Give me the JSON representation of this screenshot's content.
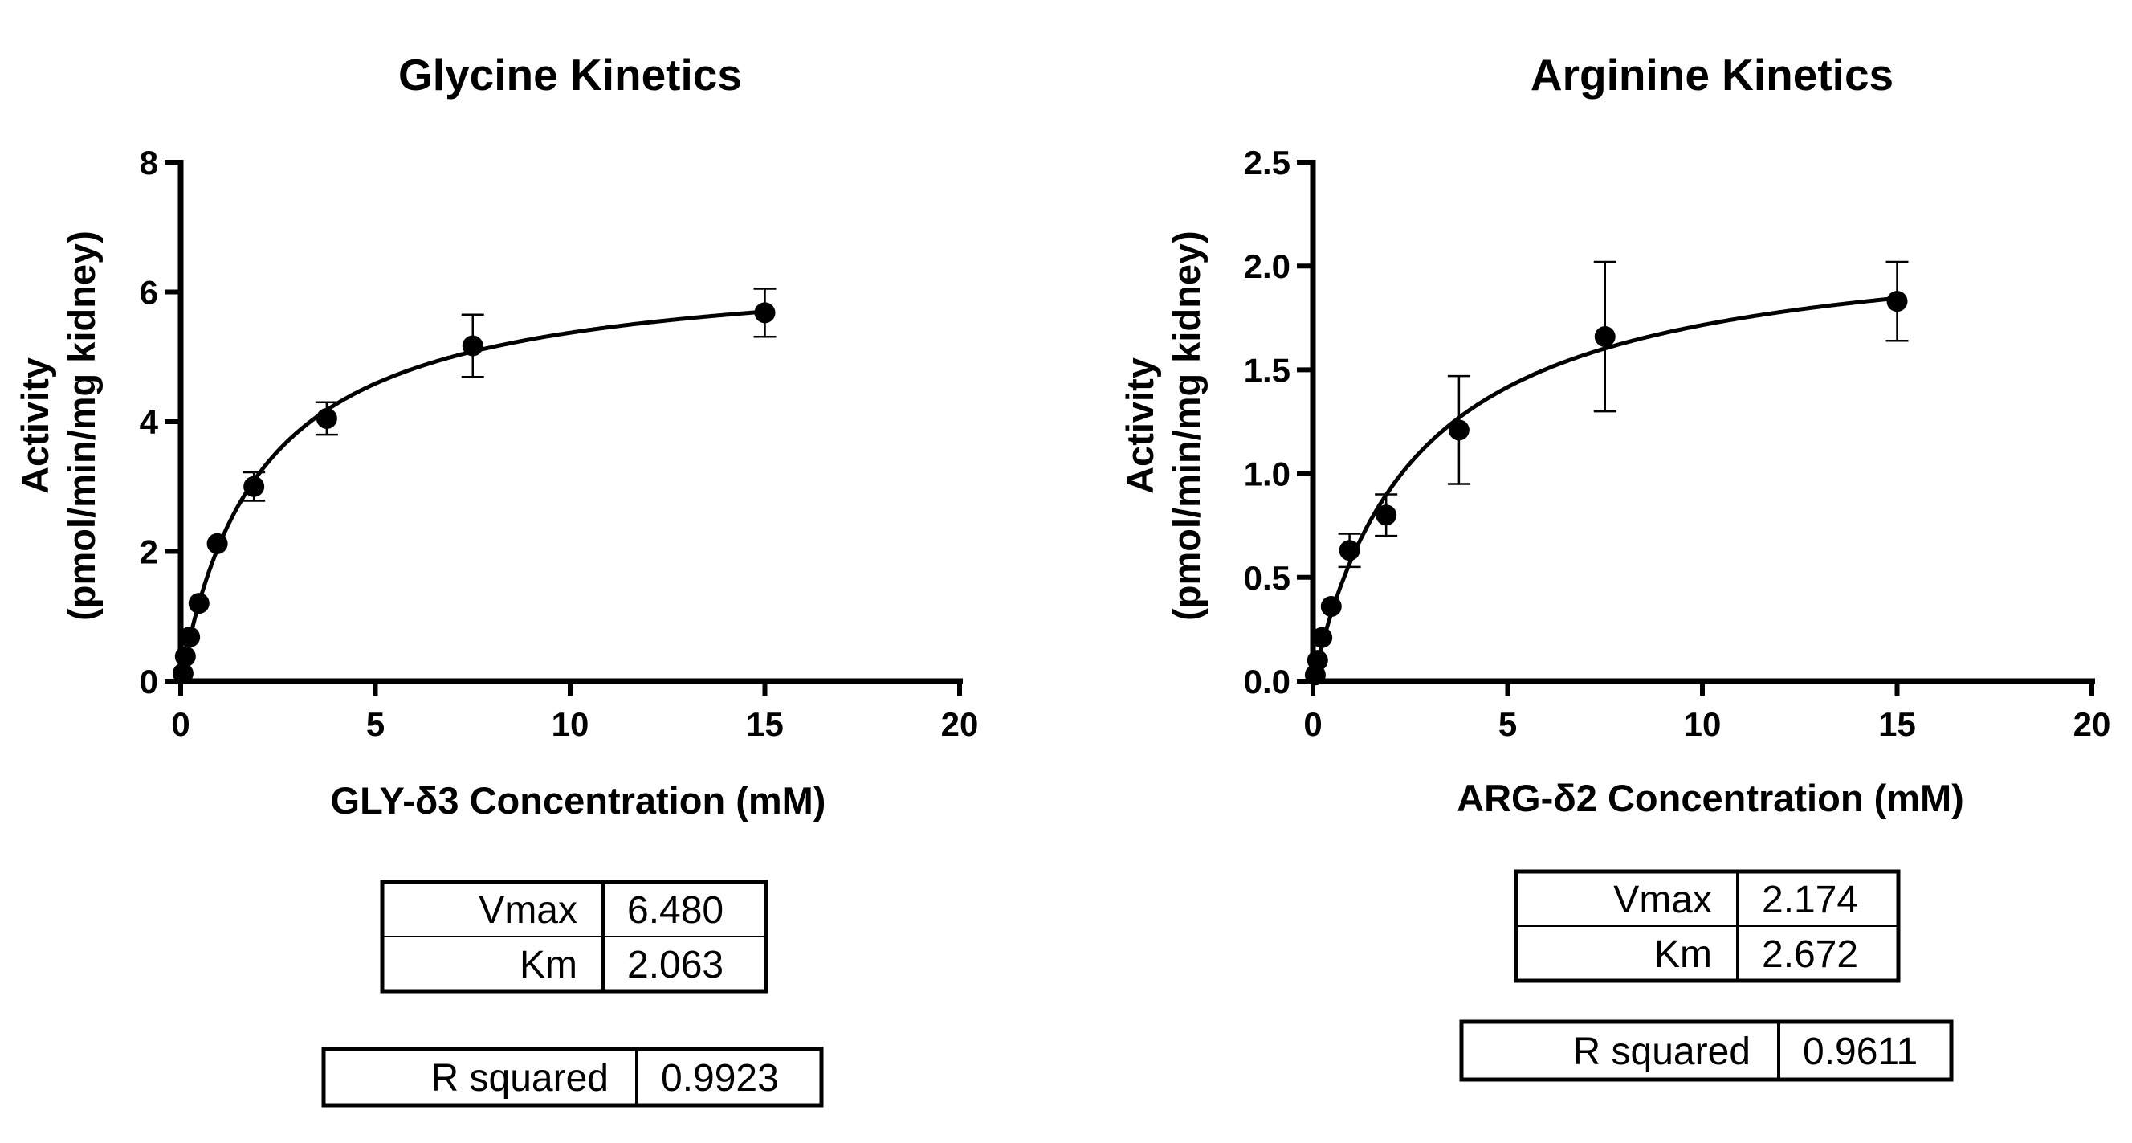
{
  "chart_data": [
    {
      "type": "scatter",
      "title": "Glycine Kinetics",
      "xlabel": "GLY-δ3 Concentration (mM)",
      "ylabel_lines": [
        "Activity",
        "(pmol/min/mg kidney)"
      ],
      "xlim": [
        0,
        20
      ],
      "ylim": [
        0,
        8
      ],
      "xticks": [
        "0",
        "5",
        "10",
        "15",
        "20"
      ],
      "yticks": [
        "0",
        "2",
        "4",
        "6",
        "8"
      ],
      "x": [
        0.06,
        0.12,
        0.23,
        0.47,
        0.94,
        1.88,
        3.75,
        7.5,
        15
      ],
      "y": [
        0.12,
        0.38,
        0.68,
        1.2,
        2.12,
        3.0,
        4.05,
        5.17,
        5.68
      ],
      "error": [
        0,
        0,
        0,
        0,
        0,
        0.22,
        0.25,
        0.48,
        0.37
      ],
      "fit": {
        "model": "Michaelis-Menten",
        "vmax": 6.48,
        "km": 2.063
      },
      "params_table": [
        [
          "Vmax",
          "6.480"
        ],
        [
          "Km",
          "2.063"
        ]
      ],
      "r2_table": [
        [
          "R squared",
          "0.9923"
        ]
      ],
      "grid": false,
      "legend": "none"
    },
    {
      "type": "scatter",
      "title": "Arginine Kinetics",
      "xlabel": "ARG-δ2 Concentration (mM)",
      "ylabel_lines": [
        "Activity",
        "(pmol/min/mg kidney)"
      ],
      "xlim": [
        0,
        20
      ],
      "ylim": [
        0,
        2.5
      ],
      "xticks": [
        "0",
        "5",
        "10",
        "15",
        "20"
      ],
      "yticks": [
        "0.0",
        "0.5",
        "1.0",
        "1.5",
        "2.0",
        "2.5"
      ],
      "x": [
        0.06,
        0.12,
        0.23,
        0.47,
        0.94,
        1.88,
        3.75,
        7.5,
        15
      ],
      "y": [
        0.03,
        0.1,
        0.21,
        0.36,
        0.63,
        0.8,
        1.21,
        1.66,
        1.83
      ],
      "error": [
        0,
        0,
        0,
        0,
        0.08,
        0.1,
        0.26,
        0.36,
        0.19
      ],
      "fit": {
        "model": "Michaelis-Menten",
        "vmax": 2.174,
        "km": 2.672
      },
      "params_table": [
        [
          "Vmax",
          "2.174"
        ],
        [
          "Km",
          "2.672"
        ]
      ],
      "r2_table": [
        [
          "R squared",
          "0.9611"
        ]
      ],
      "grid": false,
      "legend": "none"
    }
  ]
}
